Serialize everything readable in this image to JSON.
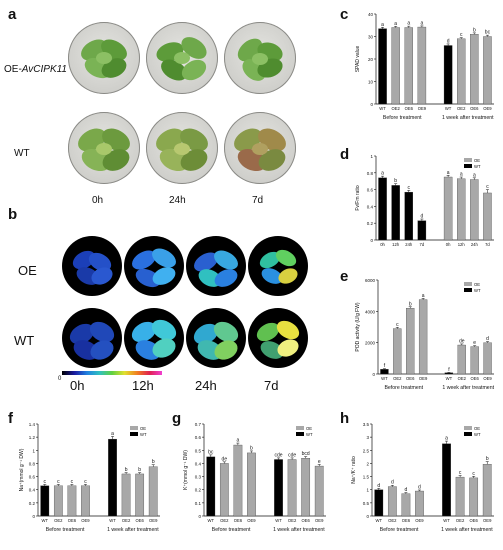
{
  "panels": {
    "a": {
      "letter": "a",
      "oe_label": "OE-",
      "oe_gene": "AvCIPK11",
      "wt_label": "WT",
      "times": [
        "0h",
        "24h",
        "7d"
      ]
    },
    "b": {
      "letter": "b",
      "oe_label": "OE",
      "wt_label": "WT",
      "times": [
        "0h",
        "12h",
        "24h",
        "7d"
      ],
      "scale_min": "0"
    }
  },
  "colors": {
    "wt": "#000000",
    "oe": "#a8a8a8",
    "leaf": "#5d9b3a",
    "leaf_dark": "#3f7a28"
  },
  "chart_data": [
    {
      "id": "c",
      "letter": "c",
      "type": "bar",
      "ylabel": "SPAD value",
      "ylim": [
        0,
        40
      ],
      "yticks": [
        0,
        10,
        20,
        30,
        40
      ],
      "categories": [
        "WT",
        "OE2",
        "OE6",
        "OE9",
        "WT",
        "OE2",
        "OE6",
        "OE9"
      ],
      "values": [
        33.5,
        34,
        34,
        34.2,
        26,
        29,
        31,
        30
      ],
      "errors": [
        0.6,
        0.5,
        0.6,
        0.5,
        0.7,
        0.5,
        0.6,
        0.6
      ],
      "letters": [
        "a",
        "a",
        "a",
        "a",
        "d",
        "c",
        "b",
        "bc"
      ],
      "kinds": [
        "wt",
        "oe",
        "oe",
        "oe",
        "wt",
        "oe",
        "oe",
        "oe"
      ],
      "groups": [
        "Before treatment",
        "1 week after treatment"
      ],
      "legend": []
    },
    {
      "id": "d",
      "letter": "d",
      "type": "bar",
      "ylabel": "Fv/Fm ratio",
      "ylim": [
        0,
        1.0
      ],
      "yticks": [
        0,
        0.2,
        0.4,
        0.6,
        0.8,
        1.0
      ],
      "categories": [
        "0h",
        "12h",
        "24h",
        "7d",
        "0h",
        "12h",
        "24h",
        "7d"
      ],
      "values": [
        0.74,
        0.65,
        0.57,
        0.23,
        0.75,
        0.73,
        0.72,
        0.56
      ],
      "errors": [
        0.02,
        0.02,
        0.02,
        0.02,
        0.02,
        0.02,
        0.02,
        0.04
      ],
      "letters": [
        "a",
        "b",
        "c",
        "d",
        "a",
        "a",
        "a",
        "c"
      ],
      "kinds": [
        "wt",
        "wt",
        "wt",
        "wt",
        "oe",
        "oe",
        "oe",
        "oe"
      ],
      "groups": [],
      "legend": [
        "OE",
        "WT"
      ]
    },
    {
      "id": "e",
      "letter": "e",
      "type": "bar",
      "ylabel": "POD activity (U/g FW)",
      "ylim": [
        0,
        6000
      ],
      "yticks": [
        0,
        2000,
        4000,
        6000
      ],
      "categories": [
        "WT",
        "OE2",
        "OE6",
        "OE9",
        "WT",
        "OE2",
        "OE6",
        "OE9"
      ],
      "values": [
        300,
        2900,
        4200,
        4750,
        80,
        1850,
        1750,
        2000
      ],
      "errors": [
        40,
        80,
        90,
        80,
        20,
        70,
        60,
        70
      ],
      "letters": [
        "f",
        "c",
        "b",
        "a",
        "f",
        "de",
        "e",
        "d"
      ],
      "kinds": [
        "wt",
        "oe",
        "oe",
        "oe",
        "wt",
        "oe",
        "oe",
        "oe"
      ],
      "groups": [
        "Before treatment",
        "1 week after treatment"
      ],
      "legend": [
        "OE",
        "WT"
      ]
    },
    {
      "id": "f",
      "letter": "f",
      "type": "bar",
      "ylabel": "Na⁺(mmol g⁻¹ DW)",
      "ylim": [
        0,
        1.4
      ],
      "yticks": [
        0,
        0.2,
        0.4,
        0.6,
        0.8,
        1.0,
        1.2,
        1.4
      ],
      "categories": [
        "WT",
        "OE2",
        "OE6",
        "OE9",
        "WT",
        "OE2",
        "OE6",
        "OE9"
      ],
      "values": [
        0.46,
        0.46,
        0.46,
        0.46,
        1.17,
        0.64,
        0.64,
        0.75
      ],
      "errors": [
        0.02,
        0.02,
        0.02,
        0.02,
        0.04,
        0.02,
        0.02,
        0.03
      ],
      "letters": [
        "c",
        "c",
        "c",
        "c",
        "a",
        "b",
        "b",
        "b"
      ],
      "kinds": [
        "wt",
        "oe",
        "oe",
        "oe",
        "wt",
        "oe",
        "oe",
        "oe"
      ],
      "groups": [
        "Before treatment",
        "1 week after treatment"
      ],
      "legend": [
        "OE",
        "WT"
      ]
    },
    {
      "id": "g",
      "letter": "g",
      "type": "bar",
      "ylabel": "K⁺(mmol g⁻¹ DW)",
      "ylim": [
        0,
        0.7
      ],
      "yticks": [
        0,
        0.1,
        0.2,
        0.3,
        0.4,
        0.5,
        0.6,
        0.7
      ],
      "categories": [
        "WT",
        "OE2",
        "OE6",
        "OE9",
        "WT",
        "OE2",
        "OE6",
        "OE9"
      ],
      "values": [
        0.45,
        0.4,
        0.54,
        0.48,
        0.43,
        0.43,
        0.44,
        0.38
      ],
      "errors": [
        0.015,
        0.012,
        0.015,
        0.015,
        0.012,
        0.012,
        0.012,
        0.012
      ],
      "letters": [
        "bc",
        "de",
        "a",
        "b",
        "cde",
        "cde",
        "bcd",
        "e"
      ],
      "kinds": [
        "wt",
        "oe",
        "oe",
        "oe",
        "wt",
        "oe",
        "oe",
        "oe"
      ],
      "groups": [
        "Before treatment",
        "1 week after treatment"
      ],
      "legend": [
        "OE",
        "WT"
      ]
    },
    {
      "id": "h",
      "letter": "h",
      "type": "bar",
      "ylabel": "Na⁺/K⁺ ratio",
      "ylim": [
        0,
        3.5
      ],
      "yticks": [
        0,
        0.5,
        1.0,
        1.5,
        2.0,
        2.5,
        3.0,
        3.5
      ],
      "categories": [
        "WT",
        "OE2",
        "OE6",
        "OE9",
        "WT",
        "OE2",
        "OE6",
        "OE9"
      ],
      "values": [
        1.0,
        1.12,
        0.85,
        0.95,
        2.75,
        1.48,
        1.45,
        1.97
      ],
      "errors": [
        0.05,
        0.05,
        0.04,
        0.04,
        0.1,
        0.06,
        0.06,
        0.1
      ],
      "letters": [
        "d",
        "d",
        "d",
        "d",
        "a",
        "c",
        "c",
        "b"
      ],
      "kinds": [
        "wt",
        "oe",
        "oe",
        "oe",
        "wt",
        "oe",
        "oe",
        "oe"
      ],
      "groups": [
        "Before treatment",
        "1 week after treatment"
      ],
      "legend": [
        "OE",
        "WT"
      ]
    }
  ]
}
